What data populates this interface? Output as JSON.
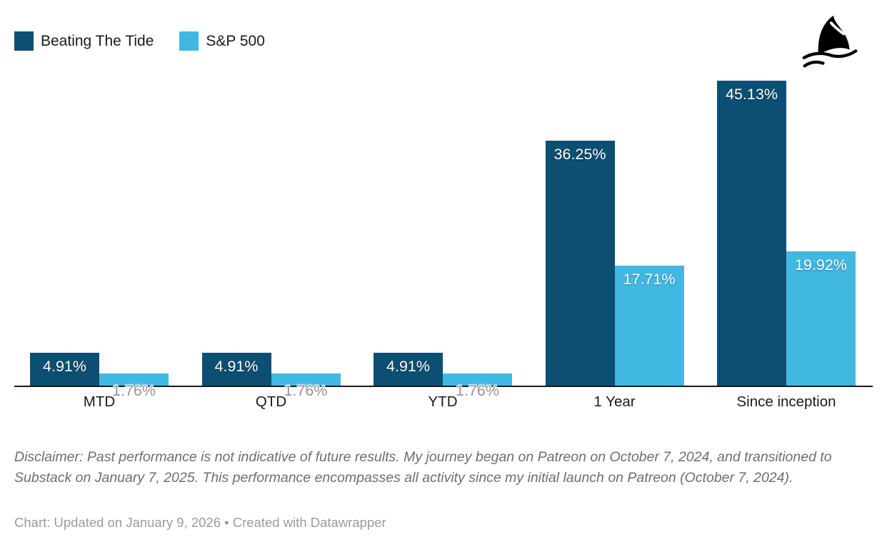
{
  "legend": {
    "items": [
      {
        "label": "Beating The Tide",
        "color": "#0d4f72"
      },
      {
        "label": "S&P 500",
        "color": "#41b8e2"
      }
    ]
  },
  "logo": {
    "name": "shark-fin-logo",
    "color": "#000000"
  },
  "chart_data": {
    "type": "bar",
    "categories": [
      "MTD",
      "QTD",
      "YTD",
      "1 Year",
      "Since inception"
    ],
    "series": [
      {
        "name": "Beating The Tide",
        "color": "#0d4f72",
        "values": [
          4.91,
          4.91,
          4.91,
          36.25,
          45.13
        ],
        "labels": [
          "4.91%",
          "4.91%",
          "4.91%",
          "36.25%",
          "45.13%"
        ]
      },
      {
        "name": "S&P 500",
        "color": "#41b8e2",
        "values": [
          1.76,
          1.76,
          1.76,
          17.71,
          19.92
        ],
        "labels": [
          "1.76%",
          "1.76%",
          "1.76%",
          "17.71%",
          "19.92%"
        ]
      }
    ],
    "ylim": [
      0,
      45.13
    ],
    "xlabel": "",
    "ylabel": "",
    "grid": false,
    "legend_position": "top-left",
    "value_label_inside_color": "#ffffff",
    "value_label_outside_color": "#949494",
    "axis_color": "#191919"
  },
  "disclaimer": "Disclaimer: Past performance is not indicative of future results. My journey began on Patreon on October 7, 2024, and transitioned to Substack on January 7, 2025. This performance encompasses all activity since my initial launch on Patreon (October 7, 2024).",
  "footer": "Chart: Updated on January 9, 2026 • Created with Datawrapper"
}
